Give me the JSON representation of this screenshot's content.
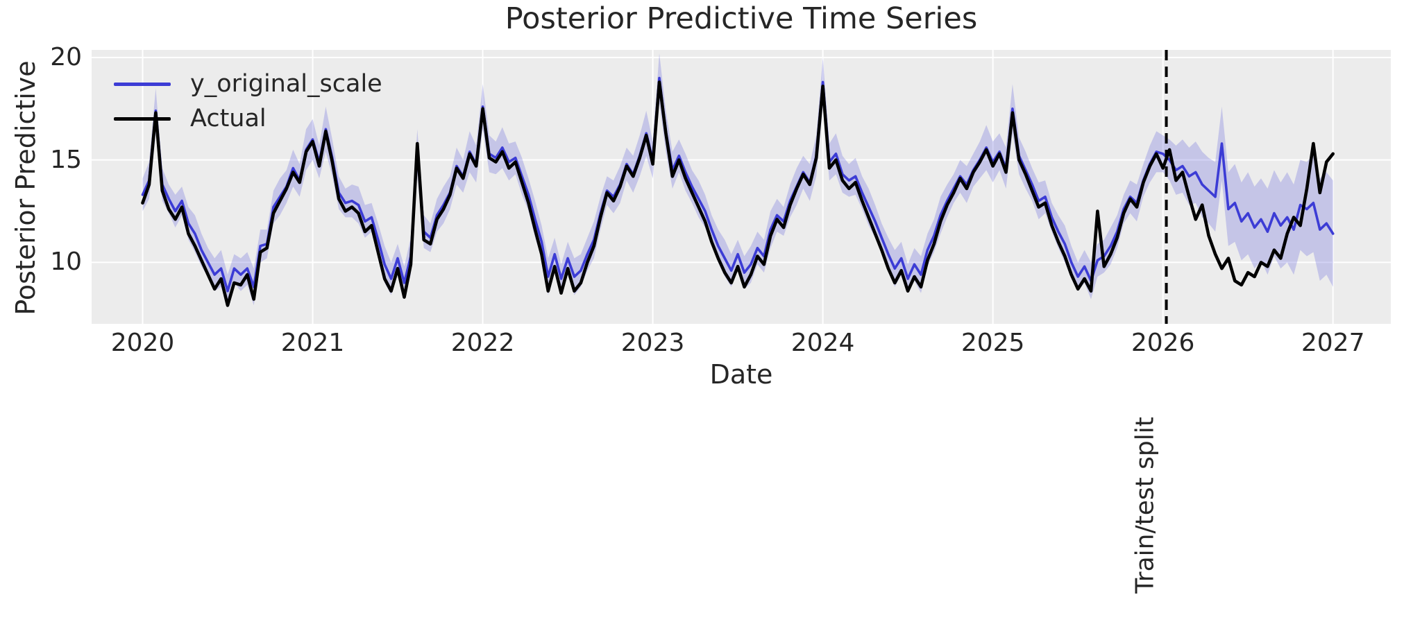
{
  "figure": {
    "title": "Posterior Predictive Time Series",
    "xlabel": "Date",
    "ylabel": "Posterior Predictive",
    "annotation": "Train/test split"
  },
  "legend": {
    "position": "upper left",
    "entries": [
      {
        "label": "y_original_scale",
        "color": "#3c3cd5"
      },
      {
        "label": "Actual",
        "color": "#000000"
      }
    ]
  },
  "colors": {
    "figure_bg": "#ffffff",
    "plot_bg": "#ececec",
    "grid": "#ffffff",
    "text": "#262626",
    "blue_line": "#3c3cd5",
    "band_fill": "rgba(80,80,215,0.25)",
    "actual_line": "#000000",
    "split_line": "#000000"
  },
  "chart_data": {
    "type": "line",
    "title": "Posterior Predictive Time Series",
    "xlabel": "Date",
    "ylabel": "Posterior Predictive",
    "grid": true,
    "legend_position": "upper left",
    "x_ticks": [
      2020,
      2021,
      2022,
      2023,
      2024,
      2025,
      2026,
      2027
    ],
    "y_ticks": [
      10,
      15,
      20
    ],
    "xlim": [
      2019.7,
      2027.34
    ],
    "ylim": [
      7.0,
      20.37
    ],
    "split_line": {
      "x": 2026.02,
      "style": "dashed",
      "label": "Train/test split"
    },
    "x_start": 2020.0,
    "x_step_years": 0.0384615,
    "n_points": 183,
    "series": [
      {
        "name": "y_original_scale",
        "kind": "line_with_band",
        "color": "#3c3cd5",
        "band_color": "rgba(80,80,215,0.25)",
        "mean": [
          13.3,
          14.0,
          17.4,
          13.8,
          13.1,
          12.5,
          13.0,
          11.9,
          11.4,
          10.6,
          10.0,
          9.4,
          9.7,
          8.6,
          9.7,
          9.4,
          9.7,
          8.8,
          10.8,
          10.9,
          12.7,
          13.2,
          13.7,
          14.6,
          14.0,
          15.5,
          16.0,
          14.9,
          16.5,
          15.1,
          13.4,
          12.9,
          13.0,
          12.8,
          12.0,
          12.2,
          11.1,
          9.9,
          9.2,
          10.2,
          9.0,
          10.3,
          15.4,
          11.5,
          11.2,
          12.3,
          12.8,
          13.4,
          14.7,
          14.2,
          15.4,
          14.8,
          17.6,
          15.3,
          15.1,
          15.6,
          14.9,
          15.1,
          14.2,
          13.3,
          12.1,
          11.0,
          9.3,
          10.4,
          9.2,
          10.2,
          9.3,
          9.6,
          10.4,
          11.1,
          12.4,
          13.5,
          13.2,
          13.8,
          14.8,
          14.3,
          15.2,
          16.3,
          15.0,
          19.0,
          16.4,
          14.5,
          15.2,
          14.4,
          13.7,
          13.1,
          12.5,
          11.6,
          10.8,
          10.2,
          9.6,
          10.4,
          9.5,
          9.9,
          10.7,
          10.3,
          11.6,
          12.3,
          12.0,
          13.0,
          13.7,
          14.4,
          13.9,
          15.2,
          18.8,
          14.9,
          15.3,
          14.3,
          14.0,
          14.2,
          13.4,
          12.7,
          12.0,
          11.2,
          10.4,
          9.7,
          10.2,
          9.2,
          9.9,
          9.4,
          10.6,
          11.3,
          12.3,
          13.0,
          13.6,
          14.2,
          13.8,
          14.5,
          15.0,
          15.6,
          14.9,
          15.4,
          14.6,
          17.5,
          15.2,
          14.5,
          13.8,
          13.0,
          13.2,
          12.2,
          11.5,
          10.9,
          10.0,
          9.3,
          9.8,
          9.1,
          10.1,
          10.3,
          10.8,
          11.5,
          12.6,
          13.2,
          12.9,
          14.0,
          14.8,
          15.4,
          15.3,
          15.0,
          14.5,
          14.7,
          14.2,
          14.4,
          13.8,
          13.5,
          13.2,
          15.8,
          12.6,
          12.9,
          12.0,
          12.4,
          11.7,
          12.1,
          11.5,
          12.4,
          11.8,
          12.2,
          11.6,
          12.8,
          12.6,
          12.9,
          11.6,
          11.9,
          11.4
        ],
        "band_halfwidth": [
          0.8,
          0.9,
          1.1,
          0.8,
          0.7,
          0.8,
          0.7,
          0.8,
          0.9,
          0.8,
          0.7,
          0.8,
          0.9,
          0.8,
          0.7,
          0.8,
          0.8,
          0.9,
          0.8,
          0.7,
          0.8,
          0.9,
          0.8,
          0.9,
          0.8,
          1.0,
          1.0,
          0.8,
          1.1,
          0.9,
          0.8,
          0.7,
          0.8,
          0.9,
          0.8,
          0.7,
          0.8,
          0.9,
          0.8,
          0.7,
          0.8,
          0.9,
          1.1,
          0.8,
          0.7,
          0.8,
          0.9,
          0.8,
          0.9,
          0.8,
          1.0,
          0.9,
          1.1,
          0.9,
          0.8,
          1.0,
          0.9,
          0.8,
          0.9,
          0.8,
          0.9,
          0.8,
          0.9,
          0.8,
          0.7,
          0.8,
          0.9,
          0.8,
          0.8,
          0.9,
          0.8,
          0.7,
          0.8,
          0.9,
          0.8,
          0.9,
          1.0,
          1.1,
          0.9,
          1.2,
          1.0,
          0.9,
          0.8,
          0.9,
          0.8,
          0.9,
          0.8,
          0.7,
          0.8,
          0.9,
          0.8,
          0.7,
          0.8,
          0.9,
          0.8,
          0.8,
          0.9,
          0.8,
          0.7,
          0.8,
          0.9,
          0.8,
          0.9,
          1.0,
          1.2,
          0.9,
          1.0,
          0.9,
          0.8,
          0.9,
          0.8,
          0.9,
          0.8,
          0.7,
          0.8,
          0.9,
          0.8,
          0.7,
          0.8,
          0.9,
          0.8,
          0.8,
          0.9,
          0.8,
          0.7,
          0.8,
          0.9,
          0.8,
          0.9,
          1.1,
          1.0,
          0.9,
          1.0,
          1.2,
          0.9,
          0.9,
          0.8,
          0.9,
          0.8,
          0.7,
          0.8,
          0.9,
          0.8,
          0.7,
          0.8,
          0.9,
          0.8,
          0.8,
          0.9,
          0.8,
          0.7,
          0.8,
          0.9,
          0.8,
          0.9,
          1.0,
          0.9,
          1.0,
          1.2,
          1.3,
          1.4,
          1.5,
          1.6,
          1.6,
          1.7,
          1.8,
          1.8,
          1.9,
          1.9,
          2.0,
          2.0,
          2.0,
          2.1,
          2.1,
          2.1,
          2.2,
          2.2,
          2.2,
          2.3,
          2.4,
          2.5,
          2.5,
          2.6
        ]
      },
      {
        "name": "Actual",
        "kind": "line",
        "color": "#000000",
        "values": [
          12.9,
          13.8,
          17.3,
          13.5,
          12.6,
          12.1,
          12.7,
          11.4,
          10.8,
          10.1,
          9.4,
          8.7,
          9.2,
          7.9,
          9.0,
          8.9,
          9.4,
          8.2,
          10.5,
          10.7,
          12.4,
          13.0,
          13.6,
          14.4,
          13.9,
          15.4,
          15.9,
          14.7,
          16.4,
          14.9,
          13.1,
          12.5,
          12.7,
          12.4,
          11.5,
          11.8,
          10.5,
          9.2,
          8.6,
          9.7,
          8.3,
          9.9,
          15.8,
          11.1,
          10.9,
          12.1,
          12.6,
          13.3,
          14.6,
          14.1,
          15.3,
          14.7,
          17.5,
          15.1,
          14.9,
          15.4,
          14.6,
          14.9,
          13.9,
          12.9,
          11.6,
          10.4,
          8.6,
          9.8,
          8.5,
          9.7,
          8.6,
          9.0,
          10.0,
          10.8,
          12.2,
          13.4,
          13.0,
          13.7,
          14.7,
          14.2,
          15.1,
          16.2,
          14.8,
          18.8,
          16.3,
          14.2,
          15.0,
          14.1,
          13.4,
          12.7,
          12.0,
          11.0,
          10.2,
          9.5,
          9.0,
          9.8,
          8.8,
          9.4,
          10.3,
          9.9,
          11.3,
          12.1,
          11.7,
          12.8,
          13.6,
          14.3,
          13.8,
          15.1,
          18.6,
          14.6,
          15.0,
          14.0,
          13.6,
          13.9,
          13.0,
          12.2,
          11.4,
          10.6,
          9.7,
          9.0,
          9.6,
          8.6,
          9.3,
          8.8,
          10.1,
          10.9,
          12.0,
          12.8,
          13.4,
          14.1,
          13.6,
          14.4,
          14.9,
          15.5,
          14.7,
          15.3,
          14.4,
          17.3,
          15.0,
          14.3,
          13.5,
          12.7,
          12.9,
          11.8,
          11.0,
          10.3,
          9.4,
          8.7,
          9.2,
          8.6,
          12.5,
          9.8,
          10.4,
          11.2,
          12.4,
          13.1,
          12.7,
          13.9,
          14.7,
          15.3,
          14.6,
          15.5,
          14.0,
          14.4,
          13.2,
          12.1,
          12.8,
          11.3,
          10.4,
          9.7,
          10.2,
          9.1,
          8.9,
          9.5,
          9.3,
          10.0,
          9.8,
          10.6,
          10.2,
          11.4,
          12.2,
          11.8,
          13.6,
          15.8,
          13.4,
          14.9,
          15.3
        ]
      }
    ]
  }
}
